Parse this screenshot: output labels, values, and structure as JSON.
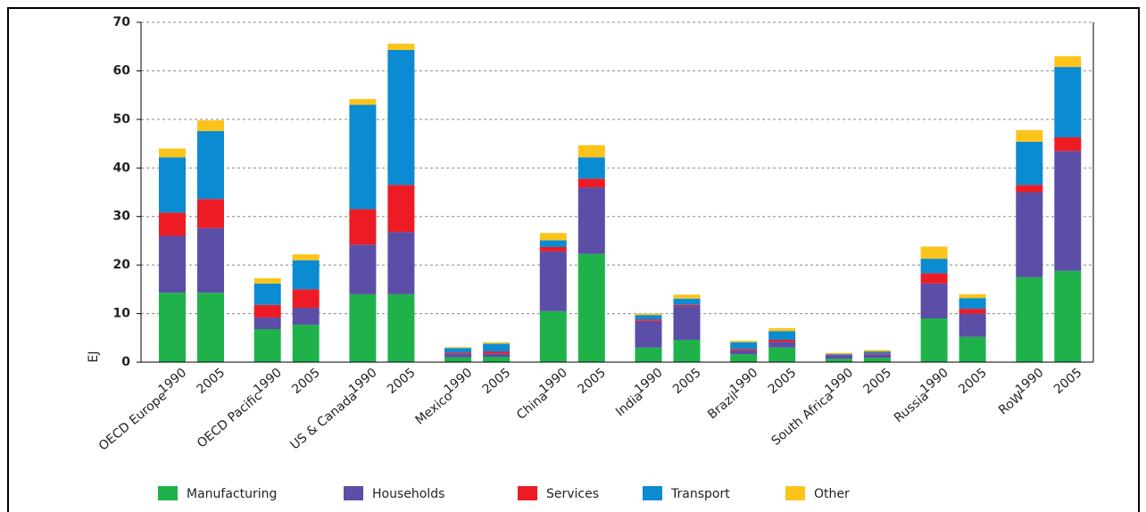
{
  "chart_data": {
    "type": "stacked_bar",
    "ylabel": "EJ",
    "groups": [
      "OECD Europe",
      "OECD Pacific",
      "US & Canada",
      "Mexico",
      "China",
      "India",
      "Brazil",
      "South Africa",
      "Russia",
      "RoW"
    ],
    "categories": [
      "1990",
      "2005",
      "1990",
      "2005",
      "1990",
      "2005",
      "1990",
      "2005",
      "1990",
      "2005",
      "1990",
      "2005",
      "1990",
      "2005",
      "1990",
      "2005",
      "1990",
      "2005",
      "1990",
      "2005"
    ],
    "series": [
      {
        "name": "Manufacturing",
        "color": "#1fb24a",
        "values": [
          14.3,
          14.3,
          6.8,
          7.7,
          14,
          14,
          1.0,
          1.1,
          10.5,
          22.3,
          3.0,
          4.6,
          1.6,
          3.0,
          0.7,
          0.9,
          9.0,
          5.2,
          17.5,
          18.8
        ]
      },
      {
        "name": "Households",
        "color": "#5a4ea6",
        "values": [
          11.7,
          13.3,
          2.4,
          3.5,
          10.2,
          12.8,
          0.8,
          0.7,
          12.3,
          13.7,
          5.5,
          6.9,
          0.8,
          1.2,
          0.7,
          0.7,
          7.2,
          4.8,
          17.5,
          24.7
        ]
      },
      {
        "name": "Services",
        "color": "#ed1c24",
        "values": [
          4.8,
          6,
          2.6,
          3.8,
          7.3,
          9.7,
          0.2,
          0.4,
          0.9,
          1.8,
          0.3,
          0.3,
          0.3,
          0.4,
          0.1,
          0.2,
          2.1,
          1,
          1.5,
          2.8
        ]
      },
      {
        "name": "Transport",
        "color": "#0b8bd2",
        "values": [
          11.4,
          14,
          4.4,
          6,
          21.5,
          27.8,
          0.9,
          1.6,
          1.4,
          4.4,
          0.9,
          1.3,
          1.4,
          1.8,
          0.2,
          0.4,
          3,
          2.2,
          8.9,
          14.5
        ]
      },
      {
        "name": "Other",
        "color": "#fcc41a",
        "values": [
          1.8,
          2.2,
          1.1,
          1.2,
          1.2,
          1.3,
          0.2,
          0.3,
          1.5,
          2.5,
          0.3,
          0.8,
          0.3,
          0.6,
          0.2,
          0.3,
          2.5,
          0.8,
          2.4,
          2.2
        ]
      }
    ],
    "ylim": [
      0,
      70
    ],
    "yticks": [
      0,
      10,
      20,
      30,
      40,
      50,
      60,
      70
    ],
    "grid": true
  }
}
